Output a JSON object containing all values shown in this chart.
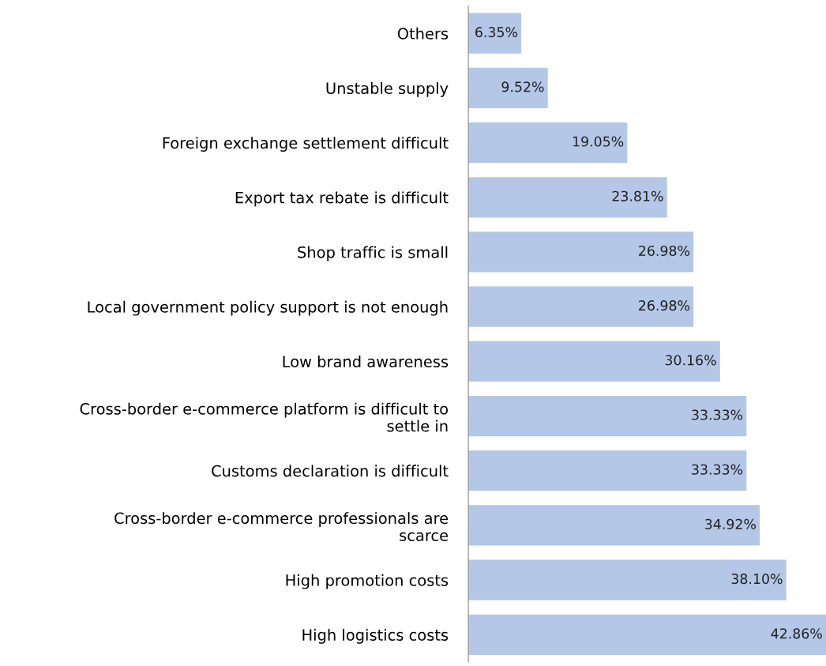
{
  "chart_data": {
    "type": "bar",
    "orientation": "horizontal",
    "data_labels": true,
    "color": "#b4c7e7",
    "grid": false,
    "legend": false,
    "categories": [
      "Others",
      "Unstable supply",
      "Foreign exchange settlement difficult",
      "Export tax rebate is difficult",
      "Shop traffic is small",
      "Local government policy support is not enough",
      "Low brand awareness",
      "Cross-border e-commerce platform is difficult to\nsettle in",
      "Customs declaration is difficult",
      "Cross-border e-commerce professionals are\nscarce",
      "High promotion costs",
      "High logistics costs"
    ],
    "values": [
      6.35,
      9.52,
      19.05,
      23.81,
      26.98,
      26.98,
      30.16,
      33.33,
      33.33,
      34.92,
      38.1,
      42.86
    ],
    "value_labels": [
      "6.35%",
      "9.52%",
      "19.05%",
      "23.81%",
      "26.98%",
      "26.98%",
      "30.16%",
      "33.33%",
      "33.33%",
      "34.92%",
      "38.10%",
      "42.86%"
    ]
  }
}
